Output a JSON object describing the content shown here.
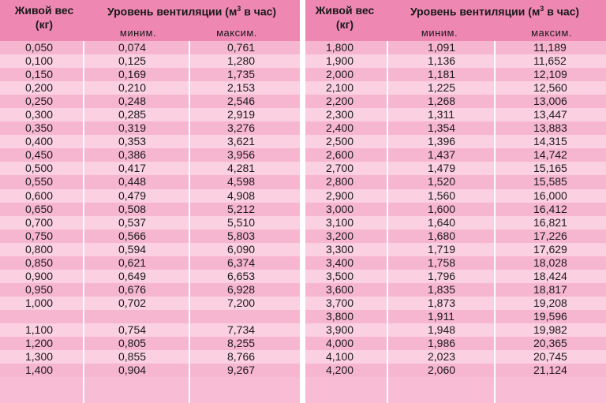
{
  "header": {
    "weight_line1": "Живой вес",
    "weight_line2": "(кг)",
    "vent_prefix": "Уровень вентиляции (м",
    "vent_sup": "3",
    "vent_suffix": " в час)",
    "min_label": "миним.",
    "max_label": "максим."
  },
  "left_rows": [
    [
      "0,050",
      "0,074",
      "0,761"
    ],
    [
      "0,100",
      "0,125",
      "1,280"
    ],
    [
      "0,150",
      "0,169",
      "1,735"
    ],
    [
      "0,200",
      "0,210",
      "2,153"
    ],
    [
      "0,250",
      "0,248",
      "2,546"
    ],
    [
      "0,300",
      "0,285",
      "2,919"
    ],
    [
      "0,350",
      "0,319",
      "3,276"
    ],
    [
      "0,400",
      "0,353",
      "3,621"
    ],
    [
      "0,450",
      "0,386",
      "3,956"
    ],
    [
      "0,500",
      "0,417",
      "4,281"
    ],
    [
      "0,550",
      "0,448",
      "4,598"
    ],
    [
      "0,600",
      "0,479",
      "4,908"
    ],
    [
      "0,650",
      "0,508",
      "5,212"
    ],
    [
      "0,700",
      "0,537",
      "5,510"
    ],
    [
      "0,750",
      "0,566",
      "5,803"
    ],
    [
      "0,800",
      "0,594",
      "6,090"
    ],
    [
      "0,850",
      "0,621",
      "6,374"
    ],
    [
      "0,900",
      "0,649",
      "6,653"
    ],
    [
      "0,950",
      "0,676",
      "6,928"
    ],
    [
      "1,000",
      "0,702",
      "7,200"
    ],
    [
      "",
      "",
      ""
    ],
    [
      "1,100",
      "0,754",
      "7,734"
    ],
    [
      "1,200",
      "0,805",
      "8,255"
    ],
    [
      "1,300",
      "0,855",
      "8,766"
    ],
    [
      "1,400",
      "0,904",
      "9,267"
    ]
  ],
  "right_rows": [
    [
      "1,800",
      "1,091",
      "11,189"
    ],
    [
      "1,900",
      "1,136",
      "11,652"
    ],
    [
      "2,000",
      "1,181",
      "12,109"
    ],
    [
      "2,100",
      "1,225",
      "12,560"
    ],
    [
      "2,200",
      "1,268",
      "13,006"
    ],
    [
      "2,300",
      "1,311",
      "13,447"
    ],
    [
      "2,400",
      "1,354",
      "13,883"
    ],
    [
      "2,500",
      "1,396",
      "14,315"
    ],
    [
      "2,600",
      "1,437",
      "14,742"
    ],
    [
      "2,700",
      "1,479",
      "15,165"
    ],
    [
      "2,800",
      "1,520",
      "15,585"
    ],
    [
      "2,900",
      "1,560",
      "16,000"
    ],
    [
      "3,000",
      "1,600",
      "16,412"
    ],
    [
      "3,100",
      "1,640",
      "16,821"
    ],
    [
      "3,200",
      "1,680",
      "17,226"
    ],
    [
      "3,300",
      "1,719",
      "17,629"
    ],
    [
      "3,400",
      "1,758",
      "18,028"
    ],
    [
      "3,500",
      "1,796",
      "18,424"
    ],
    [
      "3,600",
      "1,835",
      "18,817"
    ],
    [
      "3,700",
      "1,873",
      "19,208"
    ],
    [
      "3,800",
      "1,911",
      "19,596"
    ],
    [
      "3,900",
      "1,948",
      "19,982"
    ],
    [
      "4,000",
      "1,986",
      "20,365"
    ],
    [
      "4,100",
      "2,023",
      "20,745"
    ],
    [
      "4,200",
      "2,060",
      "21,124"
    ]
  ]
}
